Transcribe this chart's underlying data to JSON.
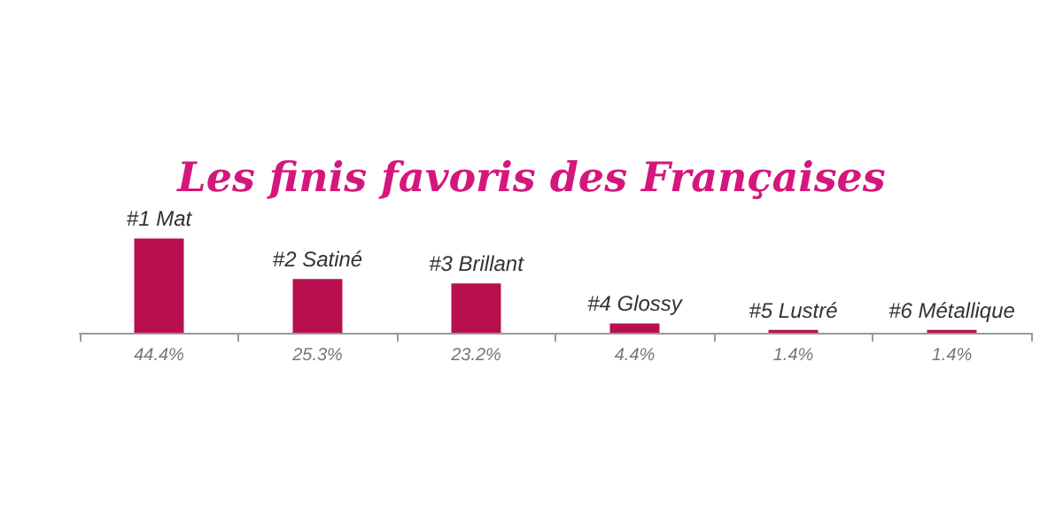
{
  "chart_data": {
    "type": "bar",
    "title": "Les finis favoris des Françaises",
    "categories": [
      "#1 Mat",
      "#2 Satiné",
      "#3 Brillant",
      "#4 Glossy",
      "#5 Lustré",
      "#6 Métallique"
    ],
    "values": [
      44.4,
      25.3,
      23.2,
      4.4,
      1.4,
      1.4
    ],
    "value_labels": [
      "44.4%",
      "25.3%",
      "23.2%",
      "4.4%",
      "1.4%",
      "1.4%"
    ],
    "color": "#b8104f"
  }
}
